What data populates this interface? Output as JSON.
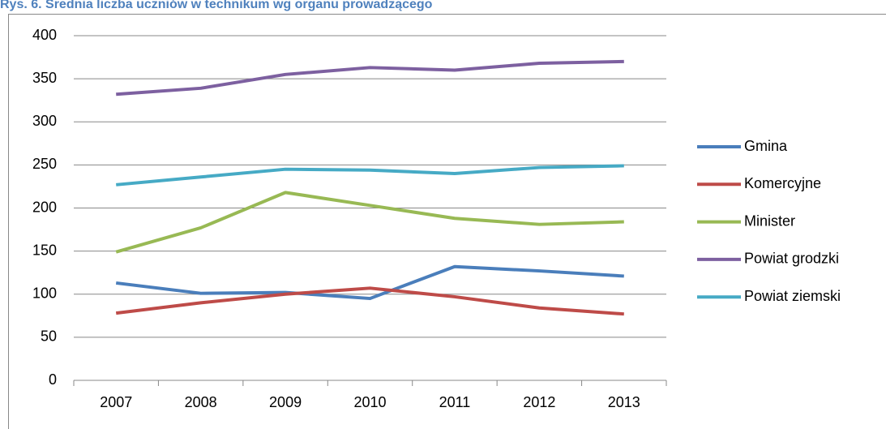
{
  "chart_data": {
    "type": "line",
    "title": "Rys. 6. Średnia liczba uczniów w technikum wg organu prowadzącego",
    "categories": [
      "2007",
      "2008",
      "2009",
      "2010",
      "2011",
      "2012",
      "2013"
    ],
    "series": [
      {
        "name": "Gmina",
        "color": "#4a7ebb",
        "values": [
          113,
          101,
          102,
          95,
          132,
          127,
          121
        ]
      },
      {
        "name": "Komercyjne",
        "color": "#be4b48",
        "values": [
          78,
          90,
          100,
          107,
          97,
          84,
          77
        ]
      },
      {
        "name": "Minister",
        "color": "#98b954",
        "values": [
          149,
          177,
          218,
          203,
          188,
          181,
          184
        ]
      },
      {
        "name": "Powiat grodzki",
        "color": "#7d60a0",
        "values": [
          332,
          339,
          355,
          363,
          360,
          368,
          370
        ]
      },
      {
        "name": "Powiat ziemski",
        "color": "#46aac5",
        "values": [
          227,
          236,
          245,
          244,
          240,
          247,
          249
        ]
      }
    ],
    "ylim": [
      0,
      400
    ],
    "yticks": [
      0,
      50,
      100,
      150,
      200,
      250,
      300,
      350,
      400
    ],
    "grid": true,
    "legend": "right"
  }
}
